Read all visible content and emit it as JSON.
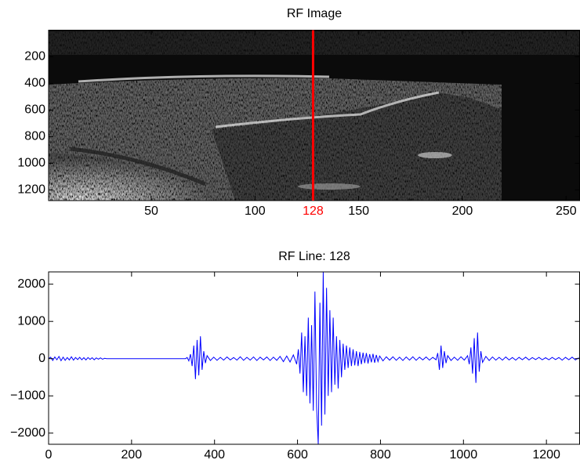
{
  "chart_data": [
    {
      "type": "image",
      "title": "RF Image",
      "xlim": [
        0.5,
        256.5
      ],
      "ylim": [
        0.5,
        1280.5
      ],
      "y_reversed": true,
      "xticks": [
        50,
        100,
        150,
        200,
        250
      ],
      "yticks": [
        200,
        400,
        600,
        800,
        1000,
        1200
      ],
      "marker_x": 128,
      "marker_color": "#ff0000"
    },
    {
      "type": "line",
      "title": "RF Line: 128",
      "x": [
        0,
        5,
        10,
        15,
        20,
        25,
        30,
        35,
        40,
        45,
        50,
        55,
        60,
        65,
        70,
        75,
        80,
        85,
        90,
        95,
        100,
        105,
        110,
        115,
        120,
        125,
        130,
        135,
        140,
        200,
        280,
        330,
        334,
        338,
        342,
        346,
        350,
        354,
        358,
        362,
        366,
        370,
        374,
        378,
        382,
        390,
        398,
        406,
        414,
        422,
        430,
        438,
        446,
        454,
        462,
        470,
        478,
        486,
        494,
        502,
        510,
        518,
        526,
        534,
        542,
        550,
        558,
        566,
        574,
        582,
        590,
        598,
        602,
        606,
        610,
        614,
        618,
        622,
        626,
        630,
        634,
        638,
        642,
        646,
        650,
        654,
        658,
        662,
        666,
        670,
        674,
        678,
        682,
        686,
        690,
        694,
        698,
        702,
        706,
        710,
        714,
        718,
        722,
        726,
        730,
        734,
        738,
        742,
        746,
        750,
        754,
        758,
        762,
        766,
        770,
        774,
        778,
        782,
        786,
        790,
        794,
        798,
        806,
        814,
        822,
        830,
        838,
        846,
        854,
        862,
        870,
        878,
        886,
        894,
        902,
        910,
        918,
        926,
        934,
        938,
        942,
        946,
        950,
        954,
        958,
        962,
        970,
        978,
        986,
        994,
        1002,
        1010,
        1014,
        1018,
        1022,
        1026,
        1030,
        1034,
        1038,
        1042,
        1046,
        1054,
        1062,
        1070,
        1078,
        1086,
        1094,
        1102,
        1110,
        1118,
        1126,
        1134,
        1142,
        1150,
        1158,
        1166,
        1174,
        1182,
        1190,
        1198,
        1206,
        1214,
        1222,
        1230,
        1238,
        1246,
        1254,
        1262,
        1270,
        1278
      ],
      "series": [
        {
          "color": "#0000ff",
          "values": [
            0,
            40,
            -50,
            45,
            -30,
            60,
            -55,
            40,
            -45,
            30,
            -35,
            50,
            -40,
            30,
            -25,
            35,
            -30,
            25,
            -35,
            30,
            -20,
            25,
            -30,
            20,
            -15,
            20,
            -15,
            10,
            0,
            0,
            0,
            0,
            30,
            -60,
            120,
            -200,
            350,
            -550,
            500,
            -450,
            600,
            -300,
            200,
            -120,
            80,
            -50,
            40,
            -45,
            35,
            -40,
            45,
            -35,
            30,
            -40,
            50,
            -45,
            35,
            -40,
            45,
            -50,
            40,
            -35,
            45,
            -50,
            40,
            -45,
            60,
            -80,
            70,
            -90,
            100,
            -150,
            250,
            -400,
            700,
            -900,
            600,
            -1000,
            1100,
            -1200,
            900,
            -1400,
            1800,
            -1300,
            -2300,
            1500,
            -1800,
            2330,
            -1500,
            1900,
            -1000,
            1300,
            -900,
            1100,
            -700,
            600,
            -800,
            500,
            -500,
            400,
            -300,
            350,
            -250,
            300,
            -200,
            250,
            -180,
            200,
            -200,
            180,
            -150,
            160,
            -120,
            150,
            -130,
            120,
            -100,
            130,
            -110,
            100,
            -80,
            70,
            -60,
            50,
            -40,
            50,
            -45,
            40,
            -50,
            45,
            -40,
            50,
            -45,
            40,
            -35,
            45,
            -40,
            35,
            -30,
            150,
            -300,
            350,
            -250,
            200,
            -120,
            80,
            -50,
            40,
            -45,
            50,
            -40,
            80,
            -150,
            300,
            -400,
            550,
            -650,
            700,
            -350,
            200,
            -100,
            60,
            -50,
            45,
            -40,
            35,
            -40,
            45,
            -35,
            30,
            -40,
            35,
            -30,
            40,
            -35,
            30,
            -25,
            35,
            -30,
            25,
            -30,
            35,
            -25,
            30,
            -40,
            35,
            -30,
            40,
            -35,
            25
          ]
        }
      ],
      "xlim": [
        0,
        1280
      ],
      "ylim": [
        -2300,
        2330
      ],
      "xticks": [
        0,
        200,
        400,
        600,
        800,
        1000,
        1200
      ],
      "yticks": [
        {
          "value": -2000,
          "label": "−2000"
        },
        {
          "value": -1000,
          "label": "−1000"
        },
        0,
        1000,
        2000
      ]
    }
  ]
}
